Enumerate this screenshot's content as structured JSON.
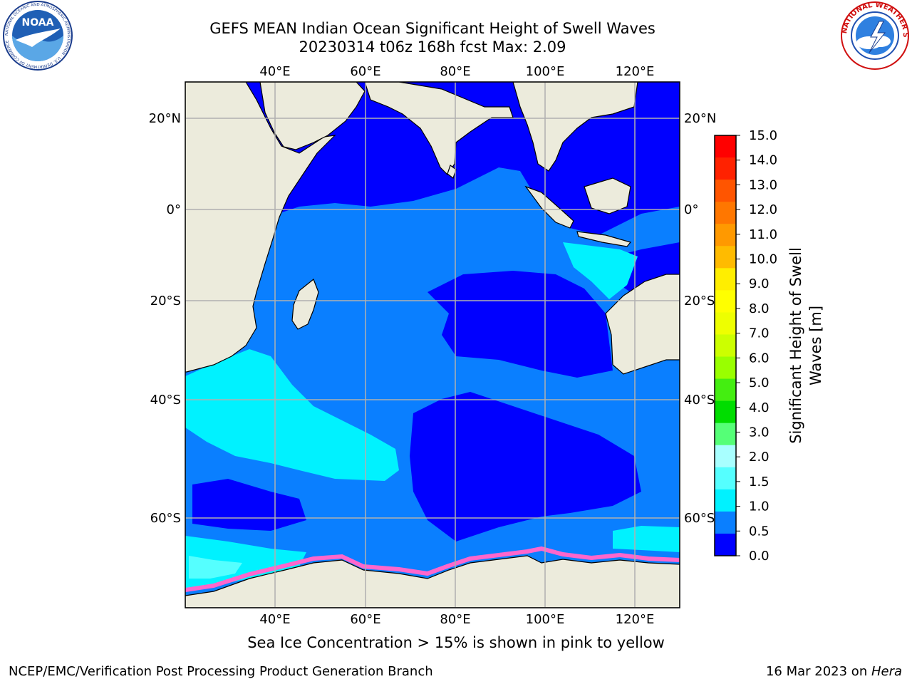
{
  "header": {
    "title_line1": "GEFS MEAN Indian Ocean Significant Height of Swell Waves",
    "title_line2": "20230314 t06z 168h fcst   Max: 2.09"
  },
  "logos": {
    "noaa": {
      "name": "noaa-logo",
      "text": "NOAA",
      "ring_text": "NATIONAL OCEANIC AND ATMOSPHERIC ADMINISTRATION · U.S. DEPARTMENT OF COMMERCE"
    },
    "nws": {
      "name": "nws-logo",
      "ring_text": "NATIONAL WEATHER SERVICE"
    }
  },
  "map": {
    "longitude_labels": [
      "40°E",
      "60°E",
      "80°E",
      "100°E",
      "120°E"
    ],
    "latitude_labels": [
      "20°N",
      "0°",
      "20°S",
      "40°S",
      "60°S"
    ],
    "colors": {
      "land": "#ecebdc",
      "swell_0_0.5": "#0000ff",
      "swell_0.5_1.0": "#0a7fff",
      "swell_1.0_1.5": "#00f2ff",
      "swell_1.5_2.0": "#55ffff",
      "gridline": "#b0b0b0",
      "sea_ice": "#ff66cc"
    }
  },
  "colorbar": {
    "title_line1": "Significant Height of Swell",
    "title_line2": "Waves [m]",
    "ticks": [
      "15.0",
      "14.0",
      "13.0",
      "12.0",
      "11.0",
      "10.0",
      "9.0",
      "8.0",
      "7.0",
      "6.0",
      "5.0",
      "4.0",
      "3.0",
      "2.0",
      "1.5",
      "1.0",
      "0.5",
      "0.0"
    ],
    "colors_top_to_bottom": [
      "#ff0000",
      "#ff2200",
      "#ff5500",
      "#ff7700",
      "#ff9900",
      "#ffbb00",
      "#ffee00",
      "#ffff00",
      "#eeff00",
      "#ccff00",
      "#99ff00",
      "#44ee11",
      "#00dd00",
      "#55ff77",
      "#a8ffff",
      "#55ffff",
      "#00f2ff",
      "#0a7fff",
      "#0000ff"
    ]
  },
  "notes": {
    "sea_ice": "Sea Ice Concentration > 15% is shown in pink to yellow"
  },
  "footer": {
    "left": "NCEP/EMC/Verification Post Processing Product Generation Branch",
    "right_date": "16 Mar 2023 on ",
    "right_host": "Hera"
  }
}
